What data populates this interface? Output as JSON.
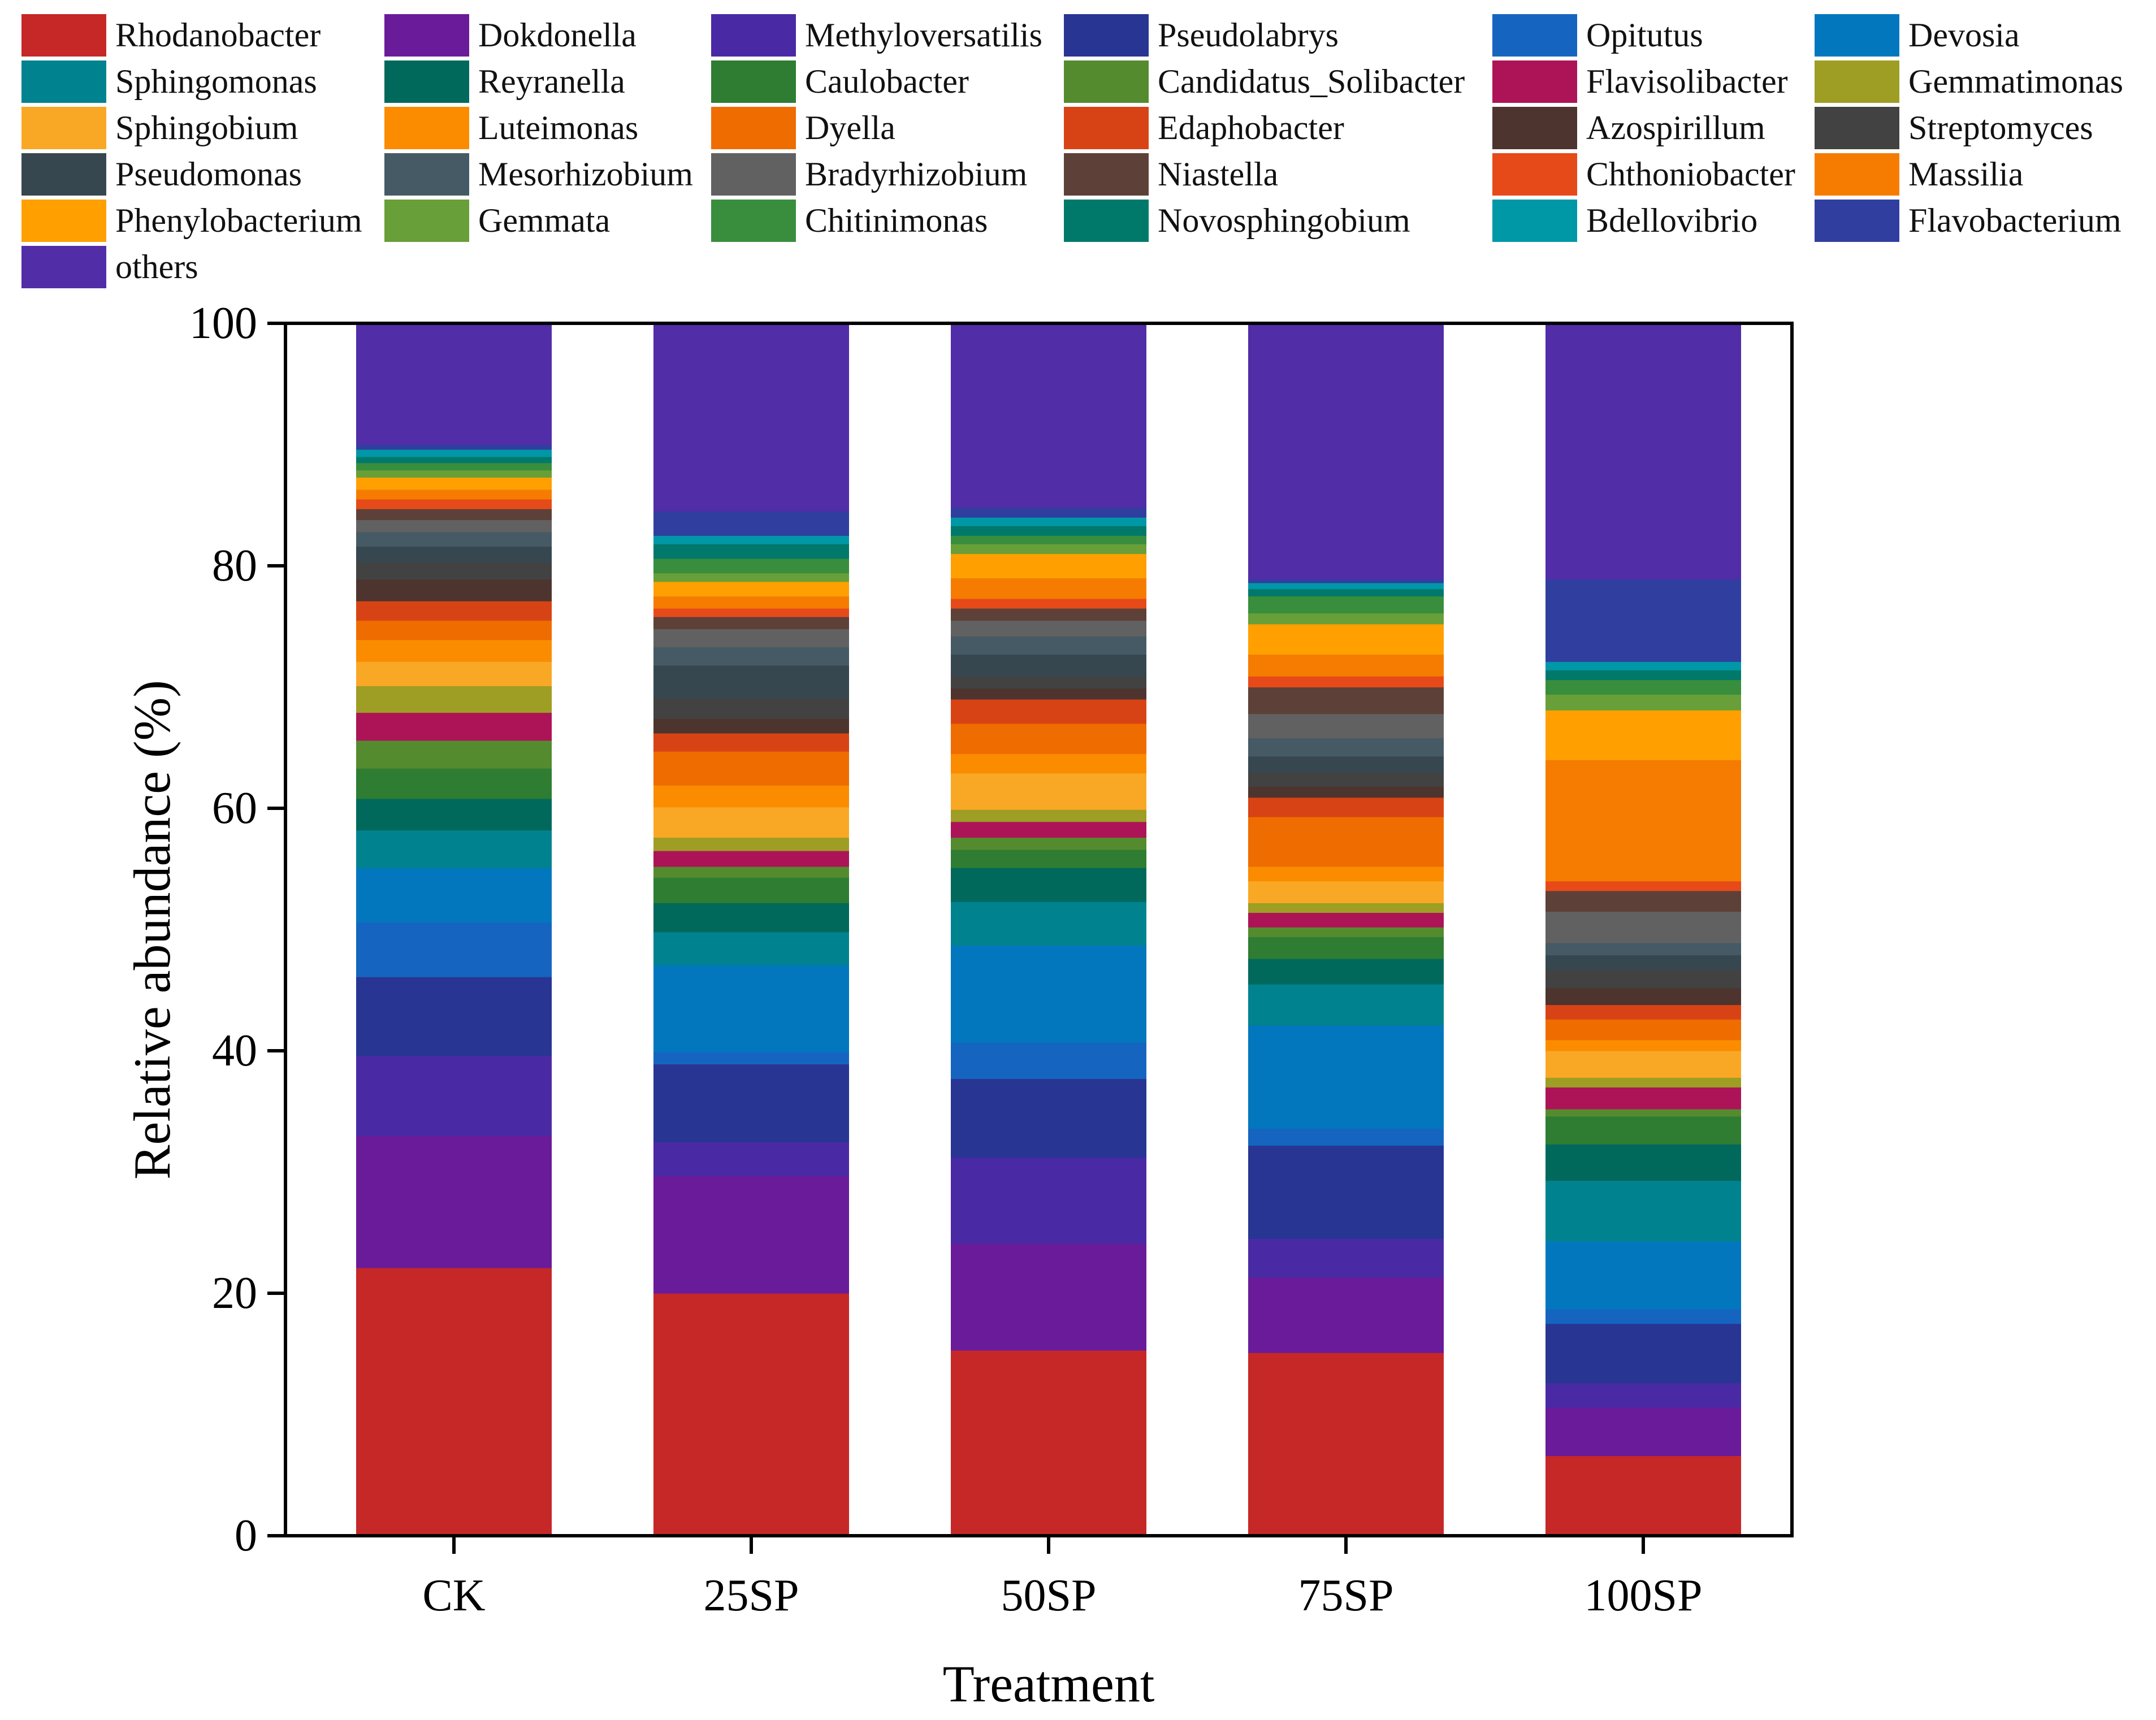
{
  "chart_data": {
    "type": "bar",
    "stacked": true,
    "title": "",
    "xlabel": "Treatment",
    "ylabel": "Relative abundance (%)",
    "ylim": [
      0,
      100
    ],
    "yticks": [
      "0",
      "20",
      "40",
      "60",
      "80",
      "100"
    ],
    "legend_position": "top",
    "categories": [
      "CK",
      "25SP",
      "50SP",
      "75SP",
      "100SP"
    ],
    "series": [
      {
        "name": "Rhodanobacter",
        "color": "#c62828",
        "values": [
          22.1,
          20.0,
          15.3,
          15.1,
          6.6
        ]
      },
      {
        "name": "Dokdonella",
        "color": "#6a1b9a",
        "values": [
          10.9,
          9.7,
          8.8,
          6.2,
          4.0
        ]
      },
      {
        "name": "Methyloversatilis",
        "color": "#4a2aa4",
        "values": [
          6.6,
          2.8,
          7.1,
          3.2,
          2.0
        ]
      },
      {
        "name": "Pseudolabrys",
        "color": "#283593",
        "values": [
          6.5,
          6.4,
          6.5,
          7.7,
          4.9
        ]
      },
      {
        "name": "Opitutus",
        "color": "#1565c0",
        "values": [
          4.5,
          1.0,
          3.0,
          1.4,
          1.2
        ]
      },
      {
        "name": "Devosia",
        "color": "#0277bd",
        "values": [
          4.5,
          7.2,
          8.0,
          8.5,
          5.6
        ]
      },
      {
        "name": "Sphingomonas",
        "color": "#00838f",
        "values": [
          3.1,
          2.7,
          3.6,
          3.4,
          5.0
        ]
      },
      {
        "name": "Reyranella",
        "color": "#00695c",
        "values": [
          2.6,
          2.4,
          2.8,
          2.1,
          3.0
        ]
      },
      {
        "name": "Caulobacter",
        "color": "#2e7d32",
        "values": [
          2.5,
          2.1,
          1.5,
          1.8,
          2.3
        ]
      },
      {
        "name": "Candidatus_Solibacter",
        "color": "#558b2f",
        "values": [
          2.3,
          0.9,
          1.0,
          0.8,
          0.6
        ]
      },
      {
        "name": "Flavisolibacter",
        "color": "#ad1457",
        "values": [
          2.3,
          1.3,
          1.3,
          1.2,
          1.8
        ]
      },
      {
        "name": "Gemmatimonas",
        "color": "#9e9d24",
        "values": [
          2.2,
          1.1,
          1.0,
          0.8,
          0.8
        ]
      },
      {
        "name": "Sphingobium",
        "color": "#f9a825",
        "values": [
          2.0,
          2.5,
          3.0,
          1.8,
          2.2
        ]
      },
      {
        "name": "Luteimonas",
        "color": "#fb8c00",
        "values": [
          1.8,
          1.8,
          1.6,
          1.2,
          0.9
        ]
      },
      {
        "name": "Dyella",
        "color": "#ef6c00",
        "values": [
          1.6,
          2.8,
          2.5,
          4.1,
          1.7
        ]
      },
      {
        "name": "Edaphobacter",
        "color": "#d84315",
        "values": [
          1.6,
          1.5,
          2.0,
          1.6,
          1.2
        ]
      },
      {
        "name": "Azospirillum",
        "color": "#4e342e",
        "values": [
          1.8,
          1.2,
          0.9,
          0.9,
          1.4
        ]
      },
      {
        "name": "Streptomyces",
        "color": "#424242",
        "values": [
          1.4,
          1.7,
          1.0,
          1.2,
          1.5
        ]
      },
      {
        "name": "Pseudomonas",
        "color": "#37474f",
        "values": [
          1.3,
          2.7,
          1.8,
          1.3,
          1.2
        ]
      },
      {
        "name": "Mesorhizobium",
        "color": "#455a64",
        "values": [
          1.2,
          1.5,
          1.5,
          1.5,
          1.0
        ]
      },
      {
        "name": "Bradyrhizobium",
        "color": "#616161",
        "values": [
          1.0,
          1.5,
          1.3,
          2.0,
          2.6
        ]
      },
      {
        "name": "Niastella",
        "color": "#5d4037",
        "values": [
          0.9,
          1.0,
          1.0,
          2.2,
          1.7
        ]
      },
      {
        "name": "Chthoniobacter",
        "color": "#e64a19",
        "values": [
          0.8,
          0.7,
          0.8,
          0.9,
          0.8
        ]
      },
      {
        "name": "Massilia",
        "color": "#f57c00",
        "values": [
          0.8,
          1.0,
          1.7,
          1.8,
          10.0
        ]
      },
      {
        "name": "Phenylobacterium",
        "color": "#ffa000",
        "values": [
          1.0,
          1.2,
          2.0,
          2.5,
          4.1
        ]
      },
      {
        "name": "Gemmata",
        "color": "#689f38",
        "values": [
          0.6,
          0.7,
          0.8,
          0.9,
          1.3
        ]
      },
      {
        "name": "Chitinimonas",
        "color": "#388e3c",
        "values": [
          0.6,
          1.2,
          0.7,
          1.4,
          1.2
        ]
      },
      {
        "name": "Novosphingobium",
        "color": "#00796b",
        "values": [
          0.5,
          1.2,
          0.8,
          0.6,
          0.8
        ]
      },
      {
        "name": "Bdellovibrio",
        "color": "#0097a7",
        "values": [
          0.6,
          0.7,
          0.7,
          0.5,
          0.7
        ]
      },
      {
        "name": "Flavobacterium",
        "color": "#303f9f",
        "values": [
          0.4,
          2.0,
          0.8,
          0.3,
          6.8
        ]
      },
      {
        "name": "others",
        "color": "#512da8",
        "values": [
          10.0,
          17.2,
          16.3,
          22.6,
          23.1
        ]
      }
    ]
  }
}
